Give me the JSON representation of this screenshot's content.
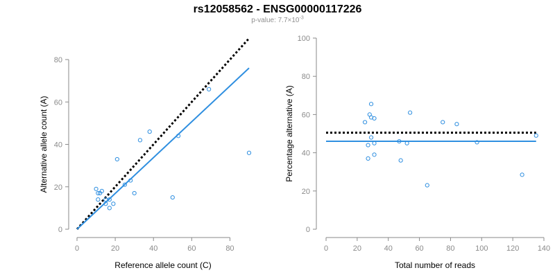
{
  "header": {
    "title": "rs12058562 - ENSG00000117226",
    "pvalue_prefix": "p-value: 7.7×10",
    "pvalue_exponent": "-3"
  },
  "colors": {
    "series": "#2f8fe0",
    "reference": "#000000",
    "axis": "#8a8a8a"
  },
  "chart_data": [
    {
      "type": "scatter",
      "xlabel": "Reference allele count (C)",
      "ylabel": "Alternative allele count (A)",
      "xlim": [
        0,
        90
      ],
      "ylim": [
        0,
        80
      ],
      "xticks": [
        0,
        20,
        40,
        60,
        80
      ],
      "yticks": [
        0,
        20,
        40,
        60,
        80
      ],
      "points": [
        {
          "x": 10,
          "y": 19
        },
        {
          "x": 11,
          "y": 17
        },
        {
          "x": 11,
          "y": 14
        },
        {
          "x": 12,
          "y": 17
        },
        {
          "x": 13,
          "y": 18
        },
        {
          "x": 15,
          "y": 12
        },
        {
          "x": 15,
          "y": 14
        },
        {
          "x": 17,
          "y": 10
        },
        {
          "x": 17,
          "y": 14
        },
        {
          "x": 19,
          "y": 12
        },
        {
          "x": 21,
          "y": 33
        },
        {
          "x": 25,
          "y": 21
        },
        {
          "x": 28,
          "y": 23
        },
        {
          "x": 30,
          "y": 17
        },
        {
          "x": 33,
          "y": 42
        },
        {
          "x": 38,
          "y": 46
        },
        {
          "x": 50,
          "y": 15
        },
        {
          "x": 53,
          "y": 44
        },
        {
          "x": 69,
          "y": 66
        },
        {
          "x": 90,
          "y": 36
        }
      ],
      "fit_line": {
        "x": [
          0,
          90
        ],
        "y": [
          0,
          76
        ]
      },
      "reference_line": {
        "x": [
          0,
          90
        ],
        "y": [
          0,
          90
        ]
      }
    },
    {
      "type": "scatter",
      "xlabel": "Total number of reads",
      "ylabel": "Percentage alternative (A)",
      "xlim": [
        0,
        140
      ],
      "ylim": [
        0,
        100
      ],
      "xticks": [
        0,
        20,
        40,
        60,
        80,
        100,
        120,
        140
      ],
      "yticks": [
        0,
        20,
        40,
        60,
        80,
        100
      ],
      "points": [
        {
          "x": 25,
          "y": 56
        },
        {
          "x": 27,
          "y": 44
        },
        {
          "x": 27,
          "y": 37
        },
        {
          "x": 28,
          "y": 60
        },
        {
          "x": 29,
          "y": 65.5
        },
        {
          "x": 29,
          "y": 58.5
        },
        {
          "x": 29,
          "y": 48
        },
        {
          "x": 31,
          "y": 58
        },
        {
          "x": 31,
          "y": 45
        },
        {
          "x": 31,
          "y": 39
        },
        {
          "x": 47,
          "y": 46
        },
        {
          "x": 48,
          "y": 36
        },
        {
          "x": 52,
          "y": 45
        },
        {
          "x": 54,
          "y": 61
        },
        {
          "x": 65,
          "y": 23
        },
        {
          "x": 75,
          "y": 56
        },
        {
          "x": 84,
          "y": 55
        },
        {
          "x": 97,
          "y": 45.5
        },
        {
          "x": 126,
          "y": 28.5
        },
        {
          "x": 135,
          "y": 49
        }
      ],
      "fit_line": {
        "x": [
          0,
          135
        ],
        "y": [
          46,
          46
        ]
      },
      "reference_line": {
        "x": [
          0,
          135
        ],
        "y": [
          50.5,
          50.5
        ]
      }
    }
  ]
}
